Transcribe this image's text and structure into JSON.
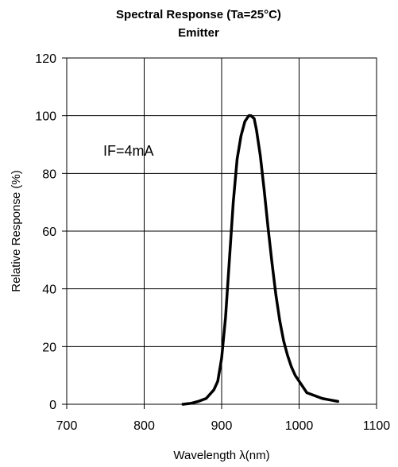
{
  "chart_data": {
    "type": "line",
    "title": "Spectral Response (Ta=25°C)",
    "subtitle": "Emitter",
    "xlabel": "Wavelength λ(nm)",
    "ylabel": "Relative Response (%)",
    "xlim": [
      700,
      1100
    ],
    "ylim": [
      0,
      120
    ],
    "xticks": [
      700,
      800,
      900,
      1000,
      1100
    ],
    "yticks": [
      0,
      20,
      40,
      60,
      80,
      100,
      120
    ],
    "grid": true,
    "annotation": "IF=4mA",
    "line_color": "#000000",
    "series": [
      {
        "x": [
          850,
          860,
          870,
          880,
          890,
          895,
          900,
          905,
          910,
          915,
          920,
          925,
          930,
          935,
          938,
          942,
          945,
          950,
          955,
          960,
          965,
          970,
          975,
          980,
          985,
          990,
          995,
          1000,
          1005,
          1010,
          1020,
          1030,
          1040,
          1050
        ],
        "values": [
          0,
          0.3,
          1,
          2,
          5,
          8,
          16,
          30,
          50,
          70,
          85,
          93,
          98,
          100,
          100,
          99,
          95,
          86,
          74,
          61,
          49,
          38,
          29,
          22,
          17,
          13,
          10,
          8,
          6,
          4,
          3,
          2,
          1.5,
          1
        ]
      }
    ]
  }
}
